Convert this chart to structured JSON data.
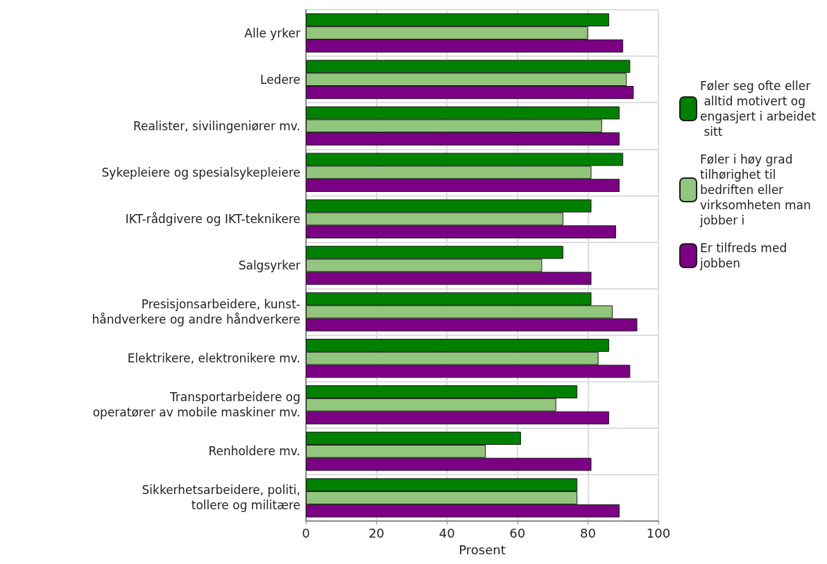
{
  "chart_data": {
    "type": "bar",
    "orientation": "horizontal",
    "xlabel": "Prosent",
    "categories": [
      "Alle yrker",
      "Ledere",
      "Realister, sivilingeniører mv.",
      "Sykepleiere og spesialsykepleiere",
      "IKT-rådgivere og IKT-teknikere",
      "Salgsyrker",
      "Presisjonsarbeidere, kunst-\nhåndverkere og andre håndverkere",
      "Elektrikere, elektronikere mv.",
      "Transportarbeidere og\noperatører av mobile maskiner mv.",
      "Renholdere mv.",
      "Sikkerhetsarbeidere, politi,\ntollere og militære"
    ],
    "series": [
      {
        "name": "Føler seg ofte eller alltid motivert og engasjert i arbeidet sitt",
        "color": "#008000",
        "values": [
          86,
          92,
          89,
          90,
          81,
          73,
          81,
          86,
          77,
          61,
          77
        ]
      },
      {
        "name": "Føler i høy grad tilhørighet til bedriften eller virksomheten man jobber i",
        "color": "#93c67d",
        "values": [
          80,
          91,
          84,
          81,
          73,
          67,
          87,
          83,
          71,
          51,
          77
        ]
      },
      {
        "name": "Er tilfreds med jobben",
        "color": "#7b0084",
        "values": [
          90,
          93,
          89,
          89,
          88,
          81,
          94,
          92,
          86,
          81,
          89
        ]
      }
    ],
    "xlim": [
      0,
      100
    ],
    "xticks": [
      0,
      20,
      40,
      60,
      80,
      100
    ],
    "grid": true,
    "legend": "right"
  }
}
